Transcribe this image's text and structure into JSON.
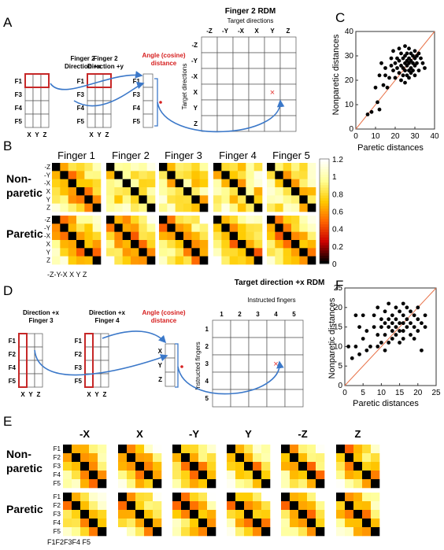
{
  "panels": {
    "A": {
      "letter": "A",
      "box1_title": [
        "Finger 2",
        "Direction +x"
      ],
      "box2_title": [
        "Finger 2",
        "Direction +y"
      ],
      "angle_label": [
        "Angle (cosine)",
        "distance"
      ],
      "finger_rows": [
        "F1",
        "F3",
        "F4",
        "F5"
      ],
      "xyz_cols": [
        "X",
        "Y",
        "Z"
      ],
      "rdm_title": "Finger 2 RDM",
      "rdm_subtitle": "Target directions",
      "rdm_cols": [
        "-Z",
        "-Y",
        "-X",
        "X",
        "Y",
        "Z"
      ],
      "rdm_rows": [
        "-Z",
        "-Y",
        "-X",
        "X",
        "Y",
        "Z"
      ],
      "rdm_side_label": "Target directions",
      "marker": "×"
    },
    "B": {
      "letter": "B",
      "fingers": [
        "Finger 1",
        "Finger 2",
        "Finger 3",
        "Finger 4",
        "Finger 5"
      ],
      "row_labels": [
        "Non-",
        "paretic",
        "Paretic"
      ],
      "row_ticks": [
        "-Z",
        "-Y",
        "-X",
        "X",
        "Y",
        "Z"
      ],
      "bottom_ticks": "-Z-Y-X X Y Z",
      "colorbar_ticks": [
        "1.2",
        "1",
        "0.8",
        "0.6",
        "0.4",
        "0.2",
        "0"
      ],
      "colors": [
        "#000000",
        "#cc0000",
        "#ff6600",
        "#ffcc00",
        "#ffff99",
        "#ffffff"
      ]
    },
    "C": {
      "letter": "C",
      "xlabel": "Paretic distances",
      "ylabel": "Nonparetic distances",
      "x_ticks": [
        "0",
        "10",
        "20",
        "30",
        "40"
      ],
      "y_ticks": [
        "0",
        "10",
        "20",
        "30",
        "40"
      ]
    },
    "D": {
      "letter": "D",
      "box1_title": [
        "Direction +x",
        "Finger 3"
      ],
      "box2_title": [
        "Direction +x",
        "Finger 4"
      ],
      "angle_label": [
        "Angle (cosine)",
        "distance"
      ],
      "finger_rows": [
        "F1",
        "F2",
        "F4",
        "F5"
      ],
      "finger_rows2": [
        "F1",
        "F2",
        "F3",
        "F5"
      ],
      "xyz_cols": [
        "X",
        "Y",
        "Z"
      ],
      "xyz_rows": [
        "X",
        "Y",
        "Z"
      ],
      "rdm_title": "Target direction +x RDM",
      "rdm_subtitle": "Instructed fingers",
      "rdm_cols": [
        "1",
        "2",
        "3",
        "4",
        "5"
      ],
      "rdm_rows": [
        "1",
        "2",
        "3",
        "4",
        "5"
      ],
      "rdm_side_label": "Instructed fingers",
      "marker": "×"
    },
    "E": {
      "letter": "E",
      "directions": [
        "-X",
        "X",
        "-Y",
        "Y",
        "-Z",
        "Z"
      ],
      "row_labels": [
        "Non-",
        "paretic",
        "Paretic"
      ],
      "finger_ticks": [
        "F1",
        "F2",
        "F3",
        "F4",
        "F5"
      ],
      "bottom_ticks": "F1F2F3F4 F5"
    },
    "F": {
      "letter": "F",
      "xlabel": "Paretic distances",
      "ylabel": "Nonparetic distances",
      "x_ticks": [
        "0",
        "5",
        "10",
        "15",
        "20",
        "25"
      ],
      "y_ticks": [
        "0",
        "5",
        "10",
        "15",
        "20",
        "25"
      ]
    }
  },
  "chart_data": [
    {
      "type": "scatter",
      "panel": "C",
      "xlabel": "Paretic distances",
      "ylabel": "Nonparetic distances",
      "xlim": [
        0,
        40
      ],
      "ylim": [
        0,
        40
      ],
      "identity_line": true,
      "points": [
        [
          6,
          6
        ],
        [
          8,
          7
        ],
        [
          10,
          17
        ],
        [
          11,
          11
        ],
        [
          12,
          8
        ],
        [
          12,
          22
        ],
        [
          13,
          27
        ],
        [
          14,
          18
        ],
        [
          15,
          25
        ],
        [
          15,
          22
        ],
        [
          16,
          17
        ],
        [
          17,
          21
        ],
        [
          18,
          29
        ],
        [
          18,
          26
        ],
        [
          19,
          32
        ],
        [
          19,
          24
        ],
        [
          20,
          27
        ],
        [
          20,
          21
        ],
        [
          21,
          29
        ],
        [
          21,
          25
        ],
        [
          22,
          33
        ],
        [
          22,
          28
        ],
        [
          22,
          23
        ],
        [
          23,
          31
        ],
        [
          23,
          26
        ],
        [
          23,
          20
        ],
        [
          24,
          29
        ],
        [
          24,
          25
        ],
        [
          24,
          22
        ],
        [
          25,
          34
        ],
        [
          25,
          30
        ],
        [
          25,
          27
        ],
        [
          25,
          24
        ],
        [
          25,
          19
        ],
        [
          26,
          31
        ],
        [
          26,
          28
        ],
        [
          26,
          26
        ],
        [
          26,
          22
        ],
        [
          27,
          33
        ],
        [
          27,
          29
        ],
        [
          27,
          27
        ],
        [
          27,
          24
        ],
        [
          27,
          21
        ],
        [
          28,
          31
        ],
        [
          28,
          28
        ],
        [
          28,
          25
        ],
        [
          28,
          23
        ],
        [
          29,
          30
        ],
        [
          29,
          27
        ],
        [
          29,
          24
        ],
        [
          30,
          32
        ],
        [
          30,
          29
        ],
        [
          30,
          26
        ],
        [
          30,
          22
        ],
        [
          31,
          30
        ],
        [
          31,
          27
        ],
        [
          32,
          31
        ],
        [
          32,
          24
        ],
        [
          33,
          29
        ],
        [
          34,
          27
        ],
        [
          35,
          25
        ]
      ]
    },
    {
      "type": "scatter",
      "panel": "F",
      "xlabel": "Paretic distances",
      "ylabel": "Nonparetic distances",
      "xlim": [
        0,
        25
      ],
      "ylim": [
        0,
        25
      ],
      "identity_line": true,
      "points": [
        [
          1,
          10
        ],
        [
          2,
          7
        ],
        [
          3,
          18
        ],
        [
          3,
          10
        ],
        [
          4,
          15
        ],
        [
          4,
          8
        ],
        [
          5,
          18
        ],
        [
          5,
          12
        ],
        [
          6,
          14
        ],
        [
          6,
          9
        ],
        [
          7,
          10
        ],
        [
          8,
          18
        ],
        [
          8,
          15
        ],
        [
          9,
          20
        ],
        [
          9,
          13
        ],
        [
          9,
          10
        ],
        [
          10,
          17
        ],
        [
          10,
          15
        ],
        [
          10,
          11
        ],
        [
          11,
          19
        ],
        [
          11,
          16
        ],
        [
          11,
          13
        ],
        [
          11,
          9
        ],
        [
          12,
          21
        ],
        [
          12,
          17
        ],
        [
          12,
          15
        ],
        [
          12,
          11
        ],
        [
          13,
          18
        ],
        [
          13,
          16
        ],
        [
          13,
          14
        ],
        [
          13,
          12
        ],
        [
          14,
          20
        ],
        [
          14,
          17
        ],
        [
          14,
          15
        ],
        [
          14,
          13
        ],
        [
          15,
          19
        ],
        [
          15,
          16
        ],
        [
          15,
          14
        ],
        [
          15,
          11
        ],
        [
          16,
          21
        ],
        [
          16,
          18
        ],
        [
          16,
          16
        ],
        [
          16,
          14
        ],
        [
          16,
          12
        ],
        [
          17,
          20
        ],
        [
          17,
          17
        ],
        [
          17,
          15
        ],
        [
          18,
          19
        ],
        [
          18,
          16
        ],
        [
          18,
          13
        ],
        [
          19,
          18
        ],
        [
          19,
          15
        ],
        [
          19,
          12
        ],
        [
          20,
          20
        ],
        [
          20,
          17
        ],
        [
          20,
          14
        ],
        [
          21,
          16
        ],
        [
          21,
          9
        ],
        [
          22,
          18
        ],
        [
          22,
          15
        ]
      ]
    },
    {
      "type": "heatmap",
      "panel": "B",
      "row_groups": [
        "Non-paretic",
        "Paretic"
      ],
      "columns": [
        "Finger 1",
        "Finger 2",
        "Finger 3",
        "Finger 4",
        "Finger 5"
      ],
      "labels": [
        "-Z",
        "-Y",
        "-X",
        "X",
        "Y",
        "Z"
      ],
      "color_range": [
        0,
        1.2
      ]
    },
    {
      "type": "heatmap",
      "panel": "E",
      "row_groups": [
        "Non-paretic",
        "Paretic"
      ],
      "columns": [
        "-X",
        "X",
        "-Y",
        "Y",
        "-Z",
        "Z"
      ],
      "labels": [
        "F1",
        "F2",
        "F3",
        "F4",
        "F5"
      ]
    }
  ]
}
